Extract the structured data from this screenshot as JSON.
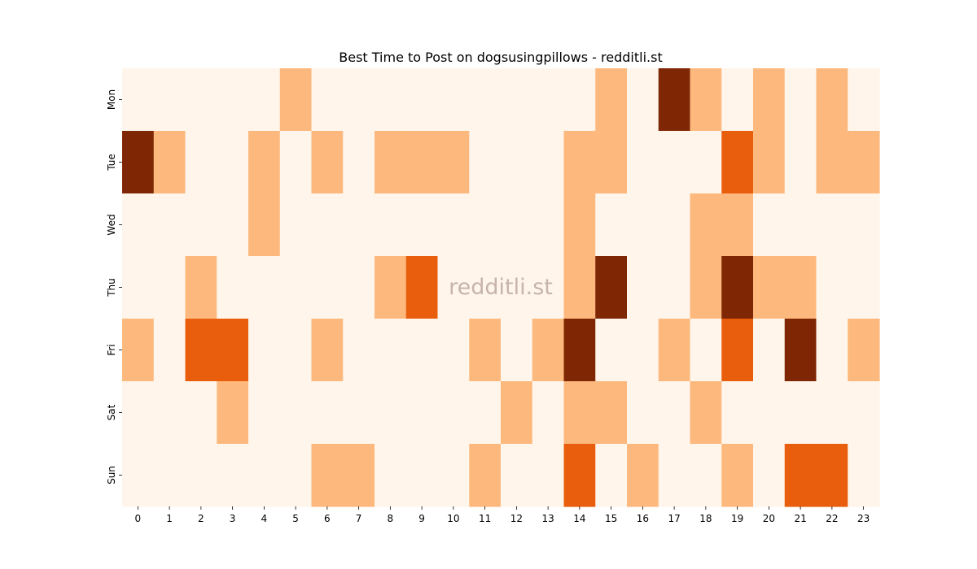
{
  "chart_data": {
    "type": "heatmap",
    "title": "Best Time to Post on dogsusingpillows - redditli.st",
    "watermark": "redditli.st",
    "x_categories": [
      "0",
      "1",
      "2",
      "3",
      "4",
      "5",
      "6",
      "7",
      "8",
      "9",
      "10",
      "11",
      "12",
      "13",
      "14",
      "15",
      "16",
      "17",
      "18",
      "19",
      "20",
      "21",
      "22",
      "23"
    ],
    "y_categories": [
      "Mon",
      "Tue",
      "Wed",
      "Thu",
      "Fri",
      "Sat",
      "Sun"
    ],
    "colormap": [
      "#fff5eb",
      "#fdb97d",
      "#e95e0d",
      "#7f2704"
    ],
    "values": [
      [
        0,
        0,
        0,
        0,
        0,
        1,
        0,
        0,
        0,
        0,
        0,
        0,
        0,
        0,
        0,
        1,
        0,
        3,
        1,
        0,
        1,
        0,
        1,
        0
      ],
      [
        3,
        1,
        0,
        0,
        1,
        0,
        1,
        0,
        1,
        1,
        1,
        0,
        0,
        0,
        1,
        1,
        0,
        0,
        0,
        2,
        1,
        0,
        1,
        1
      ],
      [
        0,
        0,
        0,
        0,
        1,
        0,
        0,
        0,
        0,
        0,
        0,
        0,
        0,
        0,
        1,
        0,
        0,
        0,
        1,
        1,
        0,
        0,
        0,
        0
      ],
      [
        0,
        0,
        1,
        0,
        0,
        0,
        0,
        0,
        1,
        2,
        0,
        0,
        0,
        0,
        1,
        3,
        0,
        0,
        1,
        3,
        1,
        1,
        0,
        0
      ],
      [
        1,
        0,
        2,
        2,
        0,
        0,
        1,
        0,
        0,
        0,
        0,
        1,
        0,
        1,
        3,
        0,
        0,
        1,
        0,
        2,
        0,
        3,
        0,
        1
      ],
      [
        0,
        0,
        0,
        1,
        0,
        0,
        0,
        0,
        0,
        0,
        0,
        0,
        1,
        0,
        1,
        1,
        0,
        0,
        1,
        0,
        0,
        0,
        0,
        0
      ],
      [
        0,
        0,
        0,
        0,
        0,
        0,
        1,
        1,
        0,
        0,
        0,
        1,
        0,
        0,
        2,
        0,
        1,
        0,
        0,
        1,
        0,
        2,
        2,
        0
      ]
    ]
  }
}
